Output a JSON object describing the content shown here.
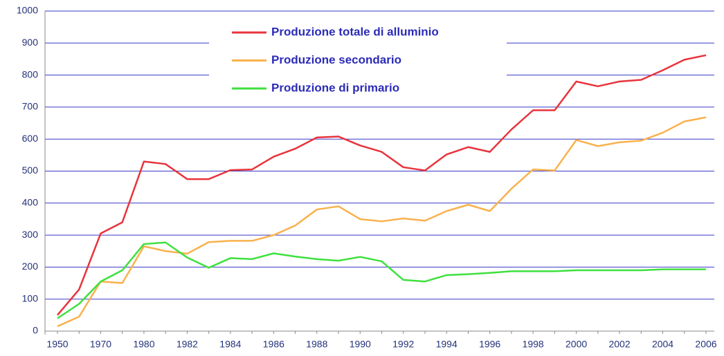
{
  "chart_data": {
    "type": "line",
    "categories": [
      "1950",
      null,
      "1970",
      null,
      "1980",
      null,
      "1982",
      null,
      "1984",
      null,
      "1986",
      null,
      "1988",
      null,
      "1990",
      null,
      "1992",
      null,
      "1994",
      null,
      "1996",
      null,
      "1998",
      null,
      "2000",
      null,
      "2002",
      null,
      "2004",
      null,
      "2006"
    ],
    "series": [
      {
        "name": "Produzione totale di alluminio",
        "color": "#e8333b",
        "values": [
          50,
          130,
          305,
          340,
          530,
          522,
          475,
          475,
          503,
          505,
          545,
          570,
          605,
          608,
          580,
          560,
          512,
          502,
          552,
          575,
          560,
          630,
          690,
          690,
          780,
          765,
          780,
          785,
          815,
          848,
          862
        ]
      },
      {
        "name": "Produzione secondario",
        "color": "#f9b14c",
        "values": [
          15,
          45,
          155,
          150,
          265,
          250,
          242,
          278,
          282,
          282,
          300,
          330,
          380,
          390,
          350,
          343,
          352,
          345,
          375,
          395,
          375,
          445,
          505,
          502,
          597,
          578,
          590,
          595,
          620,
          655,
          668
        ]
      },
      {
        "name": "Produzione di primario",
        "color": "#3ee03e",
        "values": [
          40,
          85,
          155,
          190,
          272,
          277,
          230,
          198,
          228,
          225,
          243,
          233,
          225,
          220,
          232,
          218,
          160,
          155,
          175,
          178,
          182,
          187,
          187,
          187,
          190,
          190,
          190,
          190,
          193,
          193,
          193
        ]
      }
    ],
    "ylim": [
      0,
      1000
    ],
    "yticks": [
      0,
      100,
      200,
      300,
      400,
      500,
      600,
      700,
      800,
      900,
      1000
    ],
    "grid": true,
    "legend": "top"
  }
}
